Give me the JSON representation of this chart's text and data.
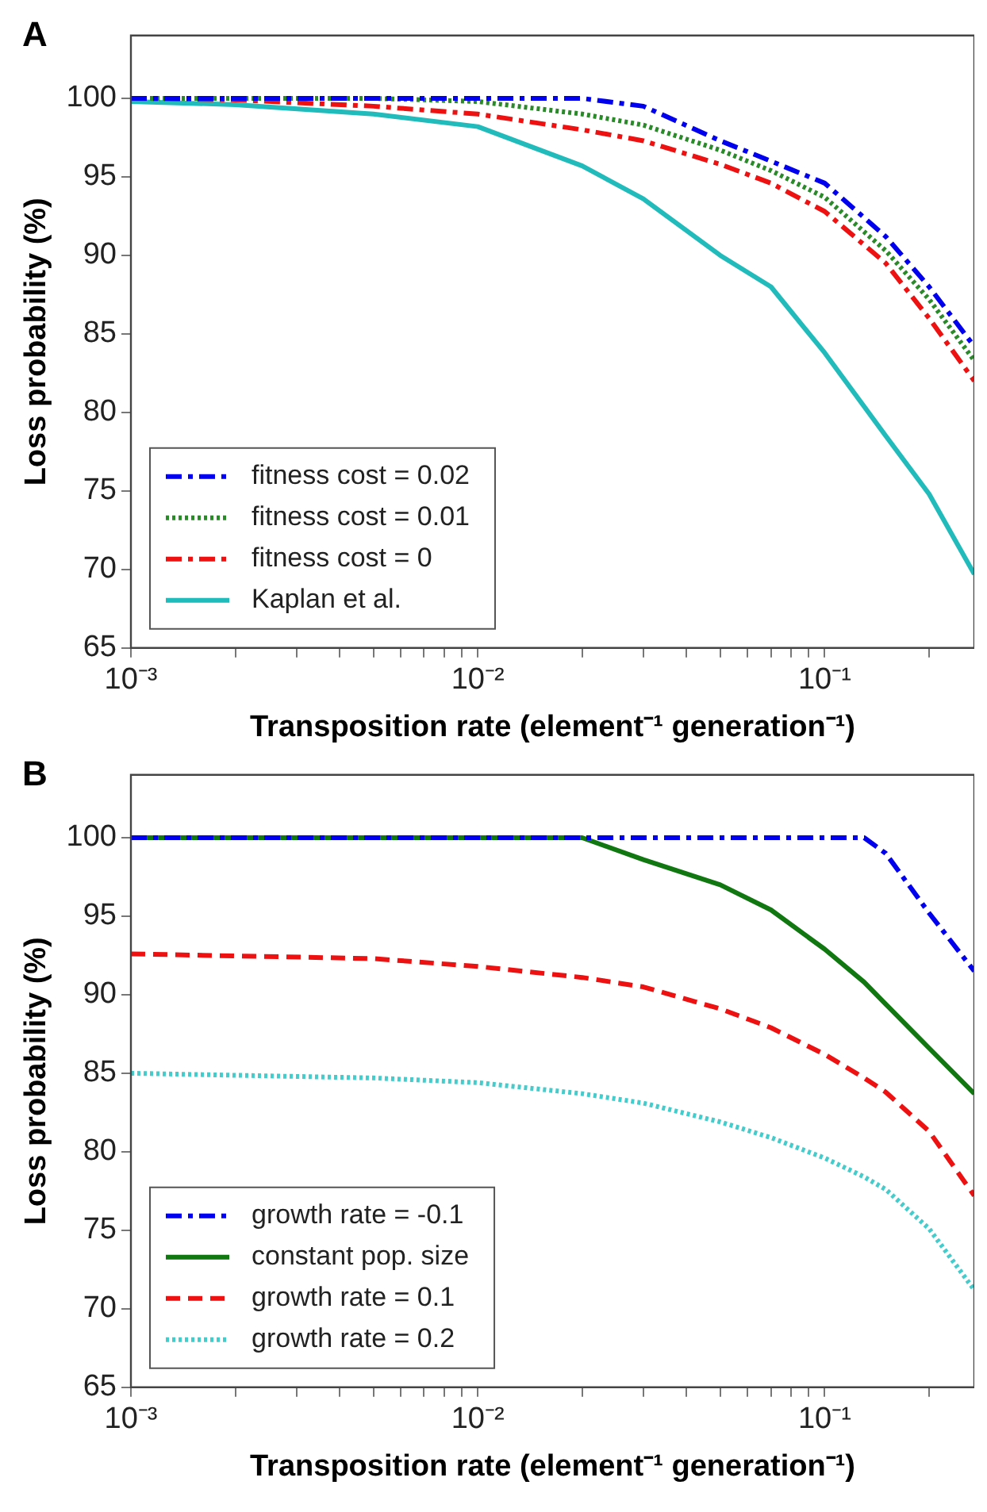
{
  "chart_data": [
    {
      "type": "line",
      "title": "A",
      "xlabel": "Transposition rate (element⁻¹ generation⁻¹)",
      "ylabel": "Loss probability (%)",
      "log": "x",
      "legend": "bottom left",
      "grid": false,
      "x": [
        0.001,
        0.002,
        0.005,
        0.01,
        0.02,
        0.03,
        0.05,
        0.07,
        0.1,
        0.15,
        0.2,
        0.27
      ],
      "xlim": [
        0.001,
        0.27
      ],
      "xticks": [
        {
          "value": 0.001,
          "label": "10⁻³"
        },
        {
          "value": 0.002,
          "label": null
        },
        {
          "value": 0.003,
          "label": null
        },
        {
          "value": 0.004,
          "label": null
        },
        {
          "value": 0.005,
          "label": null
        },
        {
          "value": 0.006,
          "label": null
        },
        {
          "value": 0.007,
          "label": null
        },
        {
          "value": 0.008,
          "label": null
        },
        {
          "value": 0.009,
          "label": null
        },
        {
          "value": 0.01,
          "label": "10⁻²"
        },
        {
          "value": 0.02,
          "label": null
        },
        {
          "value": 0.03,
          "label": null
        },
        {
          "value": 0.04,
          "label": null
        },
        {
          "value": 0.05,
          "label": null
        },
        {
          "value": 0.06,
          "label": null
        },
        {
          "value": 0.07,
          "label": null
        },
        {
          "value": 0.08,
          "label": null
        },
        {
          "value": 0.09,
          "label": null
        },
        {
          "value": 0.1,
          "label": "10⁻¹"
        },
        {
          "value": 0.2,
          "label": null
        }
      ],
      "ylim": [
        65,
        104
      ],
      "yticks": [
        65,
        70,
        75,
        80,
        85,
        90,
        95,
        100
      ],
      "series": [
        {
          "name": "fitness cost = 0.02",
          "color": "#0000ee",
          "line_style": "dashdot",
          "values": [
            100,
            100,
            100,
            100,
            100,
            99.5,
            97.3,
            96,
            94.6,
            91.2,
            88,
            84.2
          ]
        },
        {
          "name": "fitness cost = 0.01",
          "color": "#2a8a2a",
          "line_style": "dotted",
          "values": [
            100,
            100,
            100,
            99.8,
            99,
            98.3,
            96.7,
            95.4,
            93.7,
            90.3,
            87.2,
            83.3
          ]
        },
        {
          "name": "fitness cost = 0",
          "color": "#ee1111",
          "line_style": "dashdot",
          "values": [
            100,
            99.9,
            99.5,
            99,
            98,
            97.3,
            95.8,
            94.6,
            92.8,
            89.5,
            86,
            82
          ]
        },
        {
          "name": "Kaplan et al.",
          "color": "#22bbbb",
          "line_style": "solid",
          "values": [
            99.8,
            99.6,
            99,
            98.2,
            95.7,
            93.6,
            90,
            88,
            83.8,
            78.5,
            74.8,
            69.7
          ]
        }
      ]
    },
    {
      "type": "line",
      "title": "B",
      "xlabel": "Transposition rate (element⁻¹ generation⁻¹)",
      "ylabel": "Loss probability (%)",
      "log": "x",
      "legend": "bottom left",
      "grid": false,
      "x": [
        0.001,
        0.005,
        0.01,
        0.02,
        0.03,
        0.05,
        0.07,
        0.1,
        0.13,
        0.15,
        0.2,
        0.27
      ],
      "xlim": [
        0.001,
        0.27
      ],
      "xticks": [
        {
          "value": 0.001,
          "label": "10⁻³"
        },
        {
          "value": 0.002,
          "label": null
        },
        {
          "value": 0.003,
          "label": null
        },
        {
          "value": 0.004,
          "label": null
        },
        {
          "value": 0.005,
          "label": null
        },
        {
          "value": 0.006,
          "label": null
        },
        {
          "value": 0.007,
          "label": null
        },
        {
          "value": 0.008,
          "label": null
        },
        {
          "value": 0.009,
          "label": null
        },
        {
          "value": 0.01,
          "label": "10⁻²"
        },
        {
          "value": 0.02,
          "label": null
        },
        {
          "value": 0.03,
          "label": null
        },
        {
          "value": 0.04,
          "label": null
        },
        {
          "value": 0.05,
          "label": null
        },
        {
          "value": 0.06,
          "label": null
        },
        {
          "value": 0.07,
          "label": null
        },
        {
          "value": 0.08,
          "label": null
        },
        {
          "value": 0.09,
          "label": null
        },
        {
          "value": 0.1,
          "label": "10⁻¹"
        },
        {
          "value": 0.2,
          "label": null
        }
      ],
      "ylim": [
        65,
        104
      ],
      "yticks": [
        65,
        70,
        75,
        80,
        85,
        90,
        95,
        100
      ],
      "series": [
        {
          "name": "growth rate = -0.1",
          "color": "#0000ee",
          "line_style": "dashdot",
          "values": [
            100,
            100,
            100,
            100,
            100,
            100,
            100,
            100,
            100,
            99,
            95.2,
            91.5
          ]
        },
        {
          "name": "constant pop. size",
          "color": "#117711",
          "line_style": "solid",
          "values": [
            100,
            100,
            100,
            100,
            98.6,
            97,
            95.4,
            92.9,
            90.8,
            89.4,
            86.6,
            83.7
          ]
        },
        {
          "name": "growth rate = 0.1",
          "color": "#ee1111",
          "line_style": "dashed",
          "values": [
            92.6,
            92.3,
            91.8,
            91.1,
            90.5,
            89.1,
            87.9,
            86.2,
            84.7,
            83.8,
            81.3,
            77.2
          ]
        },
        {
          "name": "growth rate = 0.2",
          "color": "#44cccc",
          "line_style": "dotted",
          "values": [
            85,
            84.7,
            84.4,
            83.7,
            83.1,
            81.9,
            80.9,
            79.6,
            78.4,
            77.6,
            75.1,
            71.2
          ]
        }
      ]
    }
  ]
}
